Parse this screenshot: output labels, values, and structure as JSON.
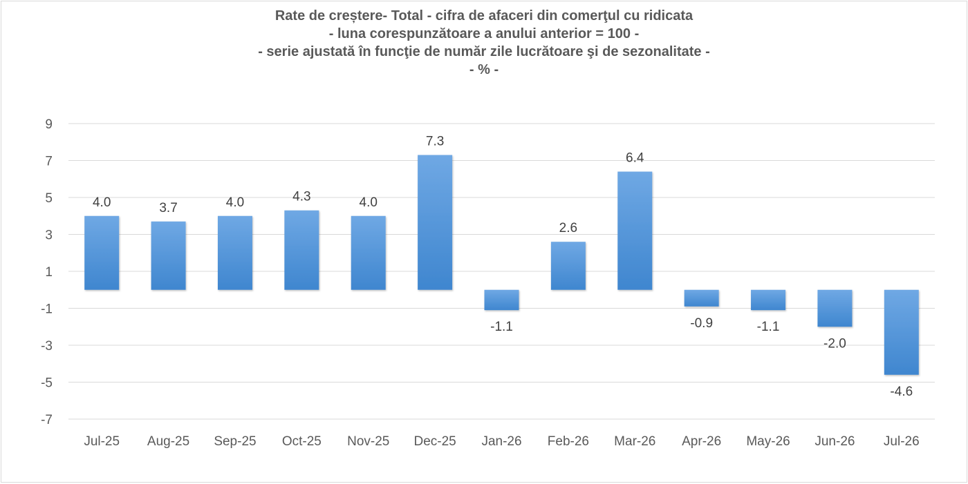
{
  "chart_data": {
    "type": "bar",
    "title_lines": [
      "Rate de creștere- Total - cifra de afaceri din comerţul cu ridicata",
      "- luna corespunzătoare a anului anterior = 100 -",
      "- serie ajustată în funcţie de număr zile lucrătoare şi de sezonalitate -",
      "- % -"
    ],
    "categories": [
      "Jul-25",
      "Aug-25",
      "Sep-25",
      "Oct-25",
      "Nov-25",
      "Dec-25",
      "Jan-26",
      "Feb-26",
      "Mar-26",
      "Apr-26",
      "May-26",
      "Jun-26",
      "Jul-26"
    ],
    "values": [
      4.0,
      3.7,
      4.0,
      4.3,
      4.0,
      7.3,
      -1.1,
      2.6,
      6.4,
      -0.9,
      -1.1,
      -2.0,
      -4.6
    ],
    "data_labels": [
      "4.0",
      "3.7",
      "4.0",
      "4.3",
      "4.0",
      "7.3",
      "-1.1",
      "2.6",
      "6.4",
      "-0.9",
      "-1.1",
      "-2.0",
      "-4.6"
    ],
    "y_ticks": [
      9,
      7,
      5,
      3,
      1,
      -1,
      -3,
      -5,
      -7
    ],
    "ylim": [
      -7,
      9
    ],
    "grid": true,
    "legend": "none",
    "xlabel": "",
    "ylabel": "",
    "colors": {
      "bar_top": "#6fa8e4",
      "bar_bottom": "#3f86cf",
      "grid": "#d9d9d9",
      "text": "#595959",
      "label": "#404040"
    }
  }
}
